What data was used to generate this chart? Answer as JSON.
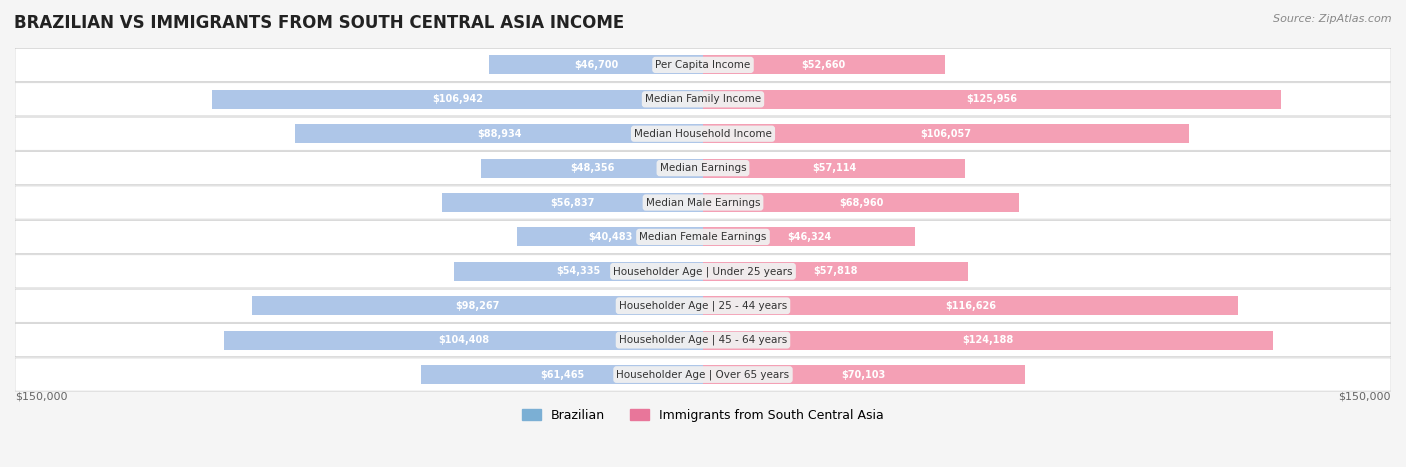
{
  "title": "BRAZILIAN VS IMMIGRANTS FROM SOUTH CENTRAL ASIA INCOME",
  "source": "Source: ZipAtlas.com",
  "categories": [
    "Per Capita Income",
    "Median Family Income",
    "Median Household Income",
    "Median Earnings",
    "Median Male Earnings",
    "Median Female Earnings",
    "Householder Age | Under 25 years",
    "Householder Age | 25 - 44 years",
    "Householder Age | 45 - 64 years",
    "Householder Age | Over 65 years"
  ],
  "brazilian_values": [
    46700,
    106942,
    88934,
    48356,
    56837,
    40483,
    54335,
    98267,
    104408,
    61465
  ],
  "immigrant_values": [
    52660,
    125956,
    106057,
    57114,
    68960,
    46324,
    57818,
    116626,
    124188,
    70103
  ],
  "brazilian_labels": [
    "$46,700",
    "$106,942",
    "$88,934",
    "$48,356",
    "$56,837",
    "$40,483",
    "$54,335",
    "$98,267",
    "$104,408",
    "$61,465"
  ],
  "immigrant_labels": [
    "$52,660",
    "$125,956",
    "$106,057",
    "$57,114",
    "$68,960",
    "$46,324",
    "$57,818",
    "$116,626",
    "$124,188",
    "$70,103"
  ],
  "max_value": 150000,
  "bar_height": 0.55,
  "brazilian_color": "#aec6e8",
  "immigrant_color": "#f4a0b5",
  "brazilian_label_color_inside": "#4472c4",
  "immigrant_label_color_inside": "#d44870",
  "background_color": "#f5f5f5",
  "row_bg_color": "#ffffff",
  "label_box_color": "#f0f0f0",
  "center_label_color": "#555555",
  "title_color": "#222222",
  "axis_label_color": "#666666",
  "legend_brazilian_color": "#7bafd4",
  "legend_immigrant_color": "#e8769a"
}
